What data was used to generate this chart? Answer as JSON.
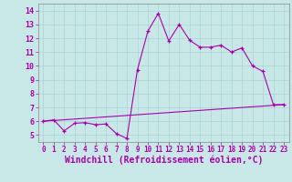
{
  "xlabel": "Windchill (Refroidissement éolien,°C)",
  "bg_color": "#c8e8e8",
  "line_color": "#aa00aa",
  "x_ticks": [
    0,
    1,
    2,
    3,
    4,
    5,
    6,
    7,
    8,
    9,
    10,
    11,
    12,
    13,
    14,
    15,
    16,
    17,
    18,
    19,
    20,
    21,
    22,
    23
  ],
  "y_ticks": [
    5,
    6,
    7,
    8,
    9,
    10,
    11,
    12,
    13,
    14
  ],
  "ylim": [
    4.5,
    14.5
  ],
  "xlim": [
    -0.5,
    23.5
  ],
  "curve1_x": [
    0,
    1,
    2,
    3,
    4,
    5,
    6,
    7,
    8,
    9,
    10,
    11,
    12,
    13,
    14,
    15,
    16,
    17,
    18,
    19,
    20,
    21,
    22,
    23
  ],
  "curve1_y": [
    6.0,
    6.1,
    5.3,
    5.85,
    5.9,
    5.75,
    5.8,
    5.1,
    4.75,
    9.7,
    12.5,
    13.8,
    11.8,
    13.0,
    11.85,
    11.35,
    11.35,
    11.5,
    11.0,
    11.3,
    10.0,
    9.6,
    7.2,
    7.2
  ],
  "curve2_x": [
    0,
    23
  ],
  "curve2_y": [
    6.0,
    7.2
  ],
  "tick_color": "#aa00aa",
  "label_color": "#aa00aa"
}
